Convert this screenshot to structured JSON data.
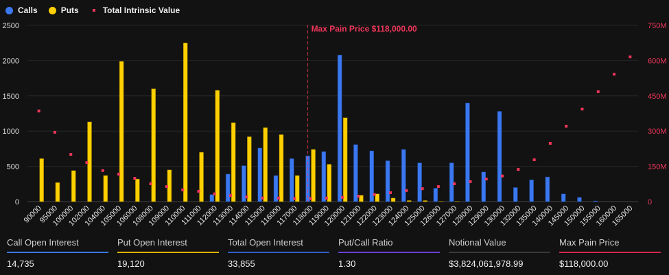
{
  "legend": {
    "calls": "Calls",
    "puts": "Puts",
    "intrinsic": "Total Intrinsic Value"
  },
  "colors": {
    "calls": "#3b78f0",
    "puts": "#ffd000",
    "intrinsic": "#f0365a",
    "ratio": "#6a3fd8",
    "notional": "#3a3a3a",
    "grid": "#262626"
  },
  "chart_data": {
    "type": "bar",
    "categories": [
      "90000",
      "95000",
      "100000",
      "102000",
      "104000",
      "105000",
      "106000",
      "108000",
      "109000",
      "110000",
      "111000",
      "112000",
      "113000",
      "114000",
      "115000",
      "116000",
      "117000",
      "118000",
      "119000",
      "120000",
      "121000",
      "122000",
      "123000",
      "124000",
      "125000",
      "126000",
      "127000",
      "128000",
      "129000",
      "130000",
      "132000",
      "135000",
      "140000",
      "145000",
      "150000",
      "155000",
      "160000",
      "165000"
    ],
    "series": [
      {
        "name": "Calls",
        "axis": "left",
        "values": [
          0,
          0,
          0,
          0,
          0,
          0,
          0,
          0,
          0,
          0,
          0,
          100,
          390,
          510,
          760,
          370,
          610,
          650,
          710,
          2080,
          810,
          720,
          580,
          740,
          550,
          190,
          550,
          1400,
          420,
          1280,
          200,
          310,
          350,
          110,
          60,
          10,
          0,
          0
        ]
      },
      {
        "name": "Puts",
        "axis": "left",
        "values": [
          610,
          270,
          440,
          1130,
          370,
          1990,
          320,
          1600,
          450,
          2250,
          700,
          1580,
          1120,
          920,
          1050,
          950,
          370,
          740,
          530,
          1190,
          90,
          110,
          50,
          15,
          15,
          5,
          5,
          0,
          0,
          0,
          0,
          0,
          0,
          0,
          0,
          0,
          0,
          0
        ]
      },
      {
        "name": "Total Intrinsic Value",
        "axis": "right",
        "type": "scatter",
        "values": [
          386,
          295,
          201,
          166,
          132,
          117,
          99,
          76,
          64,
          50,
          44,
          33,
          26,
          20,
          15,
          15,
          13,
          13,
          15,
          18,
          23,
          30,
          38,
          47,
          55,
          64,
          76,
          85,
          96,
          109,
          137,
          178,
          248,
          321,
          394,
          468,
          542,
          616
        ]
      }
    ],
    "ylim": [
      0,
      2500
    ],
    "yticks": [
      "0",
      "500",
      "1000",
      "1500",
      "2000",
      "2500"
    ],
    "y2lim": [
      0,
      750
    ],
    "y2ticks": [
      "0",
      "150M",
      "300M",
      "450M",
      "600M",
      "750M"
    ],
    "grid": true,
    "legend_position": "top-left",
    "annotation": {
      "category": "118000",
      "label": "Max Pain Price $118,000.00"
    }
  },
  "stats": [
    {
      "label": "Call Open Interest",
      "value": "14,735",
      "color": "#3b78f0"
    },
    {
      "label": "Put Open Interest",
      "value": "19,120",
      "color": "#e0b400"
    },
    {
      "label": "Total Open Interest",
      "value": "33,855",
      "color": "#2f5fc9"
    },
    {
      "label": "Put/Call Ratio",
      "value": "1.30",
      "color": "#6a3fd8"
    },
    {
      "label": "Notional Value",
      "value": "$3,824,061,978.99",
      "color": "#3a3a3a"
    },
    {
      "label": "Max Pain Price",
      "value": "$118,000.00",
      "color": "#d02848"
    }
  ]
}
